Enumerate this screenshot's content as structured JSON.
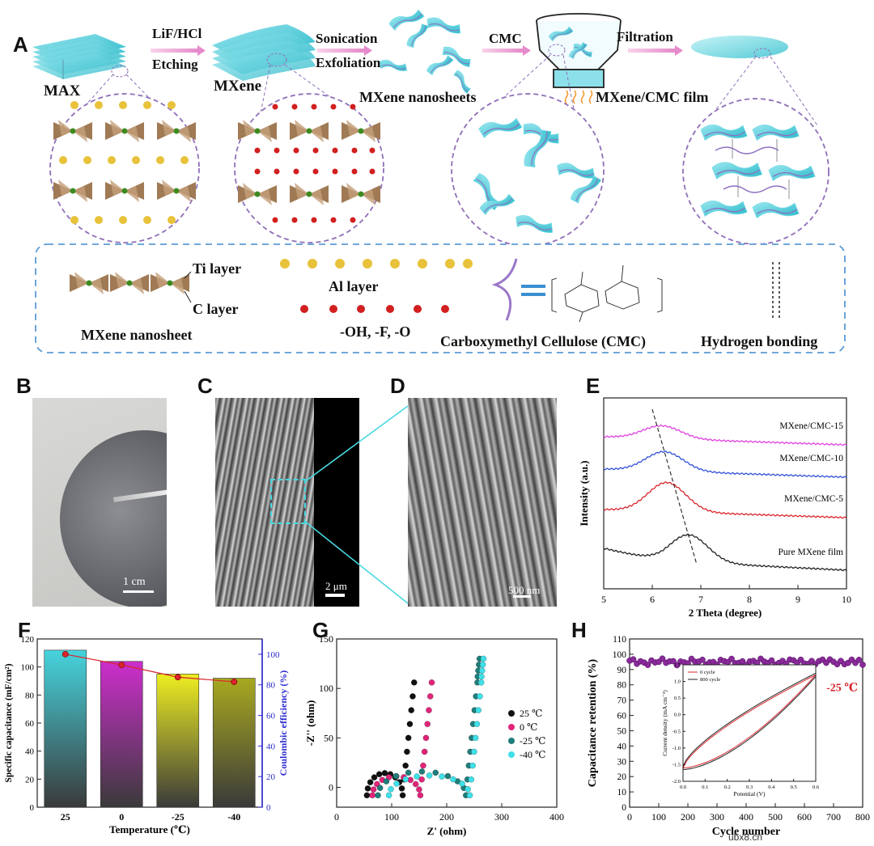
{
  "panels": {
    "A": "A",
    "B": "B",
    "C": "C",
    "D": "D",
    "E": "E",
    "F": "F",
    "G": "G",
    "H": "H"
  },
  "schematic": {
    "max_label": "MAX",
    "mxene_label": "MXene",
    "step1_top": "LiF/HCl",
    "step1_bottom": "Etching",
    "step2_top": "Sonication",
    "step2_bottom": "Exfoliation",
    "nanosheets_label": "MXene nanosheets",
    "step3": "CMC",
    "step4": "Filtration",
    "film_label": "MXene/CMC film"
  },
  "legend_box": {
    "ti_layer": "Ti layer",
    "c_layer": "C layer",
    "nanosheet": "MXene nanosheet",
    "al_layer": "Al layer",
    "terminations": "-OH, -F, -O",
    "cmc": "Carboxymethyl Cellulose (CMC)",
    "hbond": "Hydrogen bonding"
  },
  "images": {
    "B_scale": "1 cm",
    "C_scale": "2 μm",
    "D_scale": "500 nm"
  },
  "colors": {
    "teal": "#4fc8d6",
    "purple_dash": "#8f6fb8",
    "red_line": "#d9252b",
    "magenta": "#e040e0",
    "blue": "#3050d8",
    "black": "#222222"
  },
  "chart_data": [
    {
      "id": "E",
      "type": "line",
      "xlabel": "2 Theta (degree)",
      "ylabel": "Intensity (a.u.)",
      "xlim": [
        5,
        10
      ],
      "xticks": [
        "5",
        "6",
        "7",
        "8",
        "9",
        "10"
      ],
      "series": [
        {
          "name": "MXene/CMC-15",
          "peak_x": 6.2,
          "color": "#e040e0"
        },
        {
          "name": "MXene/CMC-10",
          "peak_x": 6.25,
          "color": "#3050d8"
        },
        {
          "name": "MXene/CMC-5",
          "peak_x": 6.3,
          "color": "#d9252b"
        },
        {
          "name": "Pure MXene film",
          "peak_x": 6.75,
          "color": "#222222"
        }
      ]
    },
    {
      "id": "F",
      "type": "bar",
      "categories": [
        "25",
        "0",
        "-25",
        "-40"
      ],
      "values": [
        112,
        104,
        95,
        92
      ],
      "line_values": [
        100,
        93,
        85,
        82
      ],
      "bar_colors": [
        "#46d3dd",
        "#cc2ecc",
        "#eeee22",
        "#a8a820"
      ],
      "xlabel": "Temperature (℃)",
      "ylabel": "Specific capacitance (mF/cm²)",
      "ylabel_right": "Coulombic efficiency (%)",
      "ylim": [
        0,
        120
      ],
      "ylim_right": [
        0,
        110
      ],
      "yticks": [
        "0",
        "20",
        "40",
        "60",
        "80",
        "100",
        "120"
      ],
      "yticks_right": [
        "0",
        "20",
        "40",
        "60",
        "80",
        "100"
      ]
    },
    {
      "id": "G",
      "type": "scatter",
      "xlabel": "Z' (ohm)",
      "ylabel": "-Z'' (ohm)",
      "xlim": [
        0,
        400
      ],
      "ylim": [
        -20,
        150
      ],
      "xticks": [
        "0",
        "100",
        "200",
        "300",
        "400"
      ],
      "yticks": [
        "0",
        "50",
        "100",
        "150"
      ],
      "series": [
        {
          "name": "25 ℃",
          "color": "#111111",
          "x0": 55,
          "knee": 140,
          "rmax": 28
        },
        {
          "name": "0 ℃",
          "color": "#e0257a",
          "x0": 65,
          "knee": 172,
          "rmax": 24
        },
        {
          "name": "-25 ℃",
          "color": "#1f7d7a",
          "x0": 75,
          "knee": 255,
          "rmax": 30
        },
        {
          "name": "-40 ℃",
          "color": "#3fe0e8",
          "x0": 95,
          "knee": 262,
          "rmax": 25
        }
      ]
    },
    {
      "id": "H",
      "type": "scatter",
      "xlabel": "Cycle number",
      "ylabel": "Capacitance retention (%)",
      "xlim": [
        0,
        800
      ],
      "ylim": [
        0,
        110
      ],
      "xticks": [
        "0",
        "100",
        "200",
        "300",
        "400",
        "500",
        "600",
        "700",
        "800"
      ],
      "yticks": [
        "0",
        "10",
        "20",
        "30",
        "40",
        "50",
        "60",
        "70",
        "80",
        "90",
        "100",
        "110"
      ],
      "annotation": "-25 ℃",
      "retention_mean": 95,
      "inset": {
        "xlabel": "Potential (V)",
        "ylabel": "Current density (mA cm⁻²)",
        "xlim": [
          0.0,
          0.6
        ],
        "ylim": [
          -2.0,
          1.5
        ],
        "xticks": [
          "0.0",
          "0.1",
          "0.2",
          "0.3",
          "0.4",
          "0.5",
          "0.6"
        ],
        "yticks": [
          "-2.0",
          "-1.5",
          "-1.0",
          "-0.5",
          "0.0",
          "0.5",
          "1.0",
          "1.5"
        ],
        "legend": [
          "0 cycle",
          "800 cycle"
        ]
      }
    }
  ],
  "watermark": "ubx8.cn"
}
